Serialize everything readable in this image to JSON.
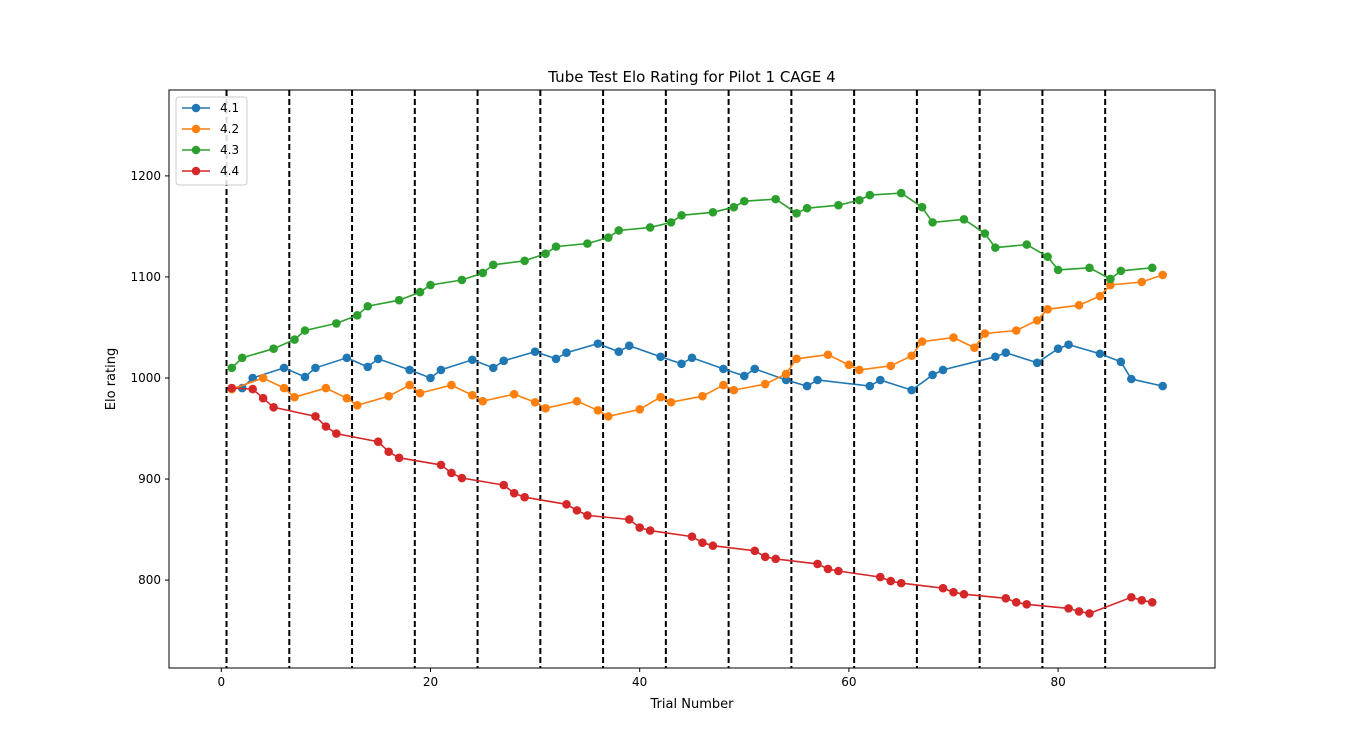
{
  "chart_data": {
    "type": "line",
    "title": "Tube Test Elo Rating for Pilot 1 CAGE 4",
    "xlabel": "Trial Number",
    "ylabel": "Elo rating",
    "xlim": [
      -5,
      95
    ],
    "ylim": [
      713,
      1285
    ],
    "xticks": [
      0,
      20,
      40,
      60,
      80
    ],
    "yticks": [
      800,
      900,
      1000,
      1100,
      1200
    ],
    "legend_position": "top-left",
    "vlines": [
      0.5,
      6.5,
      12.5,
      18.5,
      24.5,
      30.5,
      36.5,
      42.5,
      48.5,
      54.5,
      60.5,
      66.5,
      72.5,
      78.5,
      84.5
    ],
    "series": [
      {
        "name": "4.1",
        "color": "#1f77b4",
        "x": [
          2,
          3,
          6,
          8,
          9,
          12,
          14,
          15,
          18,
          20,
          21,
          24,
          26,
          27,
          30,
          32,
          33,
          36,
          38,
          39,
          42,
          44,
          45,
          48,
          50,
          51,
          54,
          56,
          57,
          62,
          63,
          66,
          68,
          69,
          74,
          75,
          78,
          80,
          81,
          84,
          86,
          87,
          90
        ],
        "y": [
          990,
          1000,
          1010,
          1001,
          1010,
          1020,
          1011,
          1019,
          1008,
          1000,
          1008,
          1018,
          1010,
          1017,
          1026,
          1019,
          1025,
          1034,
          1026,
          1032,
          1021,
          1014,
          1020,
          1009,
          1002,
          1009,
          998,
          992,
          998,
          992,
          998,
          988,
          1003,
          1008,
          1021,
          1025,
          1015,
          1029,
          1033,
          1024,
          1016,
          999,
          992
        ]
      },
      {
        "name": "4.2",
        "color": "#ff7f0e",
        "x": [
          1,
          4,
          6,
          7,
          10,
          12,
          13,
          16,
          18,
          19,
          22,
          24,
          25,
          28,
          30,
          31,
          34,
          36,
          37,
          40,
          42,
          43,
          46,
          48,
          49,
          52,
          54,
          55,
          58,
          60,
          61,
          64,
          66,
          67,
          70,
          72,
          73,
          76,
          78,
          79,
          82,
          84,
          85,
          88,
          90
        ],
        "y": [
          989,
          1000,
          990,
          981,
          990,
          980,
          973,
          982,
          993,
          985,
          993,
          983,
          977,
          984,
          976,
          970,
          977,
          968,
          962,
          969,
          981,
          976,
          982,
          993,
          988,
          994,
          1004,
          1019,
          1023,
          1013,
          1008,
          1012,
          1022,
          1036,
          1040,
          1030,
          1044,
          1047,
          1057,
          1068,
          1072,
          1081,
          1092,
          1095,
          1102
        ]
      },
      {
        "name": "4.3",
        "color": "#2ca02c",
        "x": [
          1,
          2,
          5,
          7,
          8,
          11,
          13,
          14,
          17,
          19,
          20,
          23,
          25,
          26,
          29,
          31,
          32,
          35,
          37,
          38,
          41,
          43,
          44,
          47,
          49,
          50,
          53,
          55,
          56,
          59,
          61,
          62,
          65,
          67,
          68,
          71,
          73,
          74,
          77,
          79,
          80,
          83,
          85,
          86,
          89
        ],
        "y": [
          1010,
          1020,
          1029,
          1038,
          1047,
          1054,
          1062,
          1071,
          1077,
          1085,
          1092,
          1097,
          1104,
          1112,
          1116,
          1123,
          1130,
          1133,
          1139,
          1146,
          1149,
          1154,
          1161,
          1164,
          1169,
          1175,
          1177,
          1163,
          1168,
          1171,
          1176,
          1181,
          1183,
          1169,
          1154,
          1157,
          1143,
          1129,
          1132,
          1120,
          1107,
          1109,
          1098,
          1106,
          1109
        ]
      },
      {
        "name": "4.4",
        "color": "#d62728",
        "x": [
          1,
          3,
          4,
          5,
          9,
          10,
          11,
          15,
          16,
          17,
          21,
          22,
          23,
          27,
          28,
          29,
          33,
          34,
          35,
          39,
          40,
          41,
          45,
          46,
          47,
          51,
          52,
          53,
          57,
          58,
          59,
          63,
          64,
          65,
          69,
          70,
          71,
          75,
          76,
          77,
          81,
          82,
          83,
          87,
          88,
          89
        ],
        "y": [
          990,
          989,
          980,
          971,
          962,
          952,
          945,
          937,
          927,
          921,
          914,
          906,
          901,
          894,
          886,
          882,
          875,
          869,
          864,
          860,
          852,
          849,
          843,
          837,
          834,
          829,
          823,
          821,
          816,
          811,
          809,
          803,
          799,
          797,
          792,
          788,
          786,
          782,
          778,
          776,
          772,
          769,
          767,
          783,
          780,
          778
        ]
      }
    ]
  }
}
